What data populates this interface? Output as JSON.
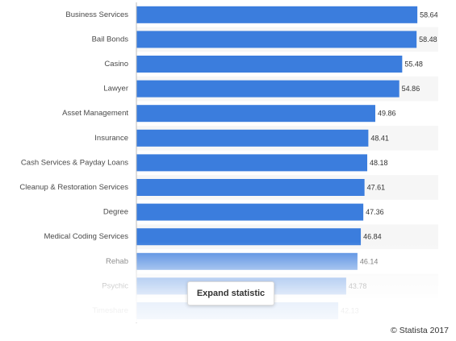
{
  "chart_data": {
    "type": "bar",
    "orientation": "horizontal",
    "categories": [
      "Business Services",
      "Bail Bonds",
      "Casino",
      "Lawyer",
      "Asset Management",
      "Insurance",
      "Cash Services & Payday Loans",
      "Cleanup & Restoration Services",
      "Degree",
      "Medical Coding Services",
      "Rehab",
      "Psychic",
      "Timeshare"
    ],
    "values": [
      58.64,
      58.48,
      55.48,
      54.86,
      49.86,
      48.41,
      48.18,
      47.61,
      47.36,
      46.84,
      46.14,
      43.78,
      42.13
    ],
    "value_labels": [
      "58.64",
      "58.48",
      "55.48",
      "54.86",
      "49.86",
      "48.41",
      "48.18",
      "47.61",
      "47.36",
      "46.84",
      "46.14",
      "43.78",
      "42.13"
    ],
    "xlim": [
      0,
      63
    ],
    "bar_color": "#3b7ddd",
    "grid": false,
    "legend": "none"
  },
  "ui": {
    "expand_label": "Expand statistic",
    "credit": "© Statista 2017"
  }
}
